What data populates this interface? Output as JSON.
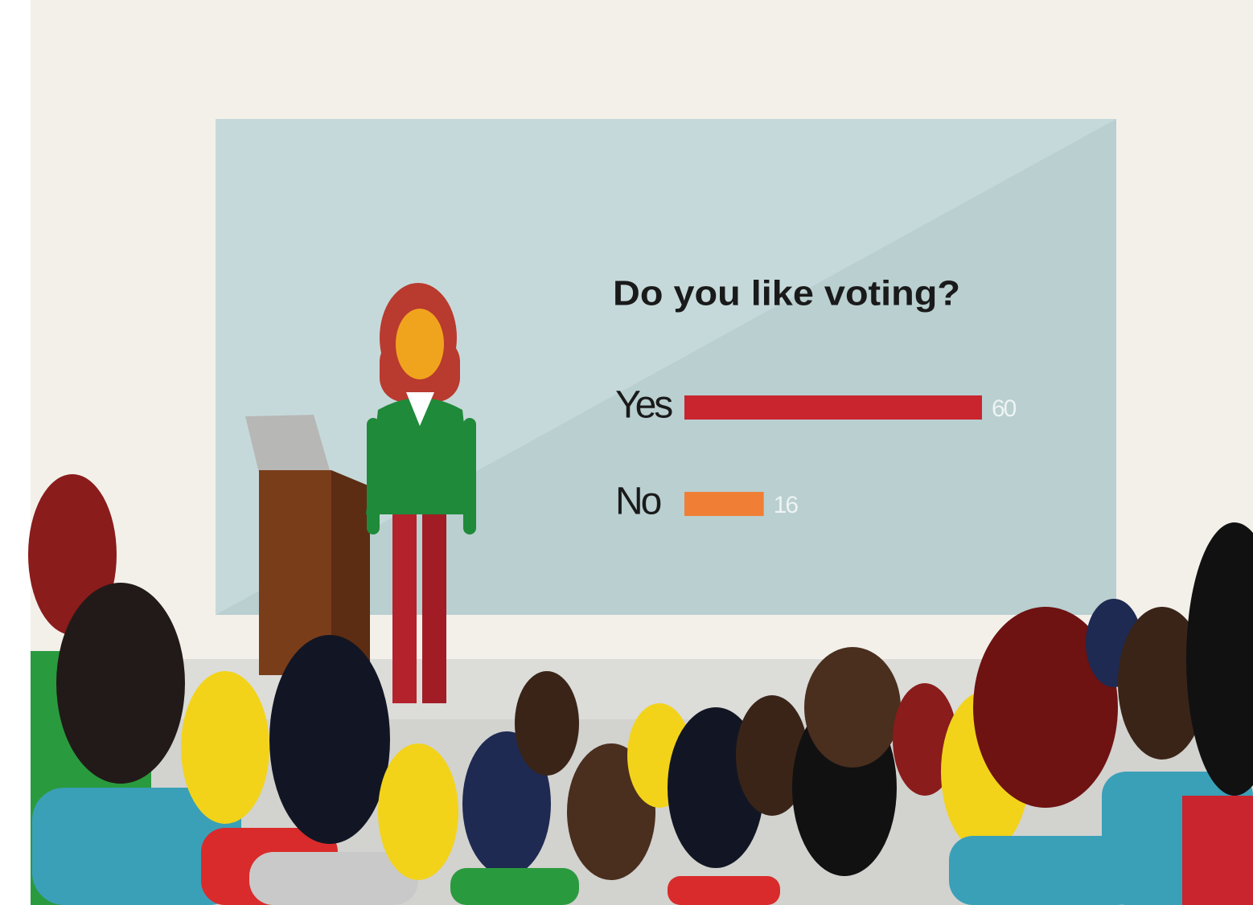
{
  "chart_data": {
    "type": "bar",
    "orientation": "horizontal",
    "title": "Do you like voting?",
    "categories": [
      "Yes",
      "No"
    ],
    "values": [
      60,
      16
    ],
    "colors": [
      "#c8252f",
      "#f07f35"
    ]
  }
}
